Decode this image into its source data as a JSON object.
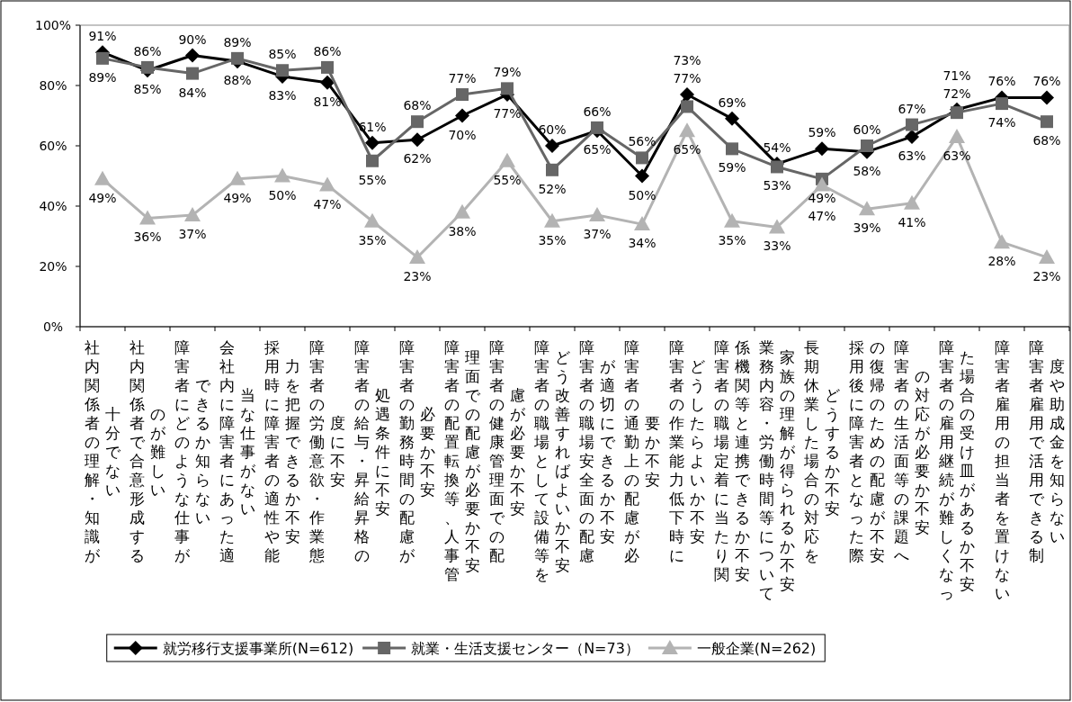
{
  "chart_data": {
    "type": "line",
    "legend": "bottom",
    "grid": false,
    "categories": [
      "社内関係者の理解・知識が十分でない",
      "社内関係者で合意形成するのが難しい",
      "障害者にどのような仕事ができるか知らない",
      "会社内に障害者にあった適当な仕事がない",
      "採用時に障害者の適性や能力を把握できるか不安",
      "障害者の労働意欲・作業態度に不安",
      "障害者の給与・昇給昇格の処遇条件に不安",
      "障害者の勤務時間の配慮が必要か不安",
      "障害者の配置転換等、人事管理面での配慮が必要か不安",
      "障害者の健康管理面での配慮が必要か不安",
      "障害者の職場として設備等をどう改善すればよいか不安",
      "障害者の職場安全面の配慮が適切にできるか不安",
      "障害者の通勤上の配慮が必要か不安",
      "障害者の作業能力低下時にどうしたらよいか不安",
      "障害者の職場定着に当たり関係機関等と連携できるか不安",
      "業務内容・労働時間等について家族の理解が得られるか不安",
      "長期休業した場合の対応をどうするか不安",
      "採用後に障害者となった際の復帰のための配慮が不安",
      "障害者の生活面等の課題への対応が必要か不安",
      "障害者の雇用継続が難しくなった場合の受け皿があるか不安",
      "障害者雇用の担当者を置けない",
      "障害者雇用で活用できる制度や助成金を知らない"
    ],
    "series": [
      {
        "name": "就労移行支援事業所(N=612)",
        "color": "#000000",
        "marker": "diamond",
        "values": [
          91,
          85,
          90,
          88,
          83,
          81,
          61,
          62,
          70,
          77,
          60,
          65,
          50,
          77,
          69,
          54,
          59,
          58,
          63,
          72,
          76,
          76
        ],
        "value_labels": [
          "91%",
          "85%",
          "90%",
          "88%",
          "83%",
          "81%",
          "61%",
          "62%",
          "70%",
          "77%",
          "60%",
          "65%",
          "50%",
          "77%",
          "69%",
          "54%",
          "59%",
          "58%",
          "63%",
          "72%",
          "76%",
          "76%"
        ]
      },
      {
        "name": "就業・生活支援センター（N=73）",
        "color": "#666666",
        "marker": "square",
        "values": [
          89,
          86,
          84,
          89,
          85,
          86,
          55,
          68,
          77,
          79,
          52,
          66,
          56,
          73,
          59,
          53,
          49,
          60,
          67,
          71,
          74,
          68
        ],
        "value_labels": [
          "89%",
          "86%",
          "84%",
          "89%",
          "85%",
          "86%",
          "55%",
          "68%",
          "77%",
          "79%",
          "52%",
          "66%",
          "56%",
          "73%",
          "59%",
          "53%",
          "49%",
          "60%",
          "67%",
          "71%",
          "74%",
          "68%"
        ]
      },
      {
        "name": "一般企業(N=262)",
        "color": "#b3b3b3",
        "marker": "triangle",
        "values": [
          49,
          36,
          37,
          49,
          50,
          47,
          35,
          23,
          38,
          55,
          35,
          37,
          34,
          65,
          35,
          33,
          47,
          39,
          41,
          63,
          28,
          23
        ],
        "value_labels": [
          "49%",
          "36%",
          "37%",
          "49%",
          "50%",
          "47%",
          "35%",
          "23%",
          "38%",
          "55%",
          "35%",
          "37%",
          "34%",
          "65%",
          "35%",
          "33%",
          "47%",
          "39%",
          "41%",
          "63%",
          "28%",
          "23%"
        ]
      }
    ],
    "ylim": [
      0,
      100
    ],
    "yticks": [
      {
        "value": 0,
        "label": "0%"
      },
      {
        "value": 20,
        "label": "20%"
      },
      {
        "value": 40,
        "label": "40%"
      },
      {
        "value": 60,
        "label": "60%"
      },
      {
        "value": 80,
        "label": "80%"
      },
      {
        "value": 100,
        "label": "100%"
      }
    ]
  }
}
